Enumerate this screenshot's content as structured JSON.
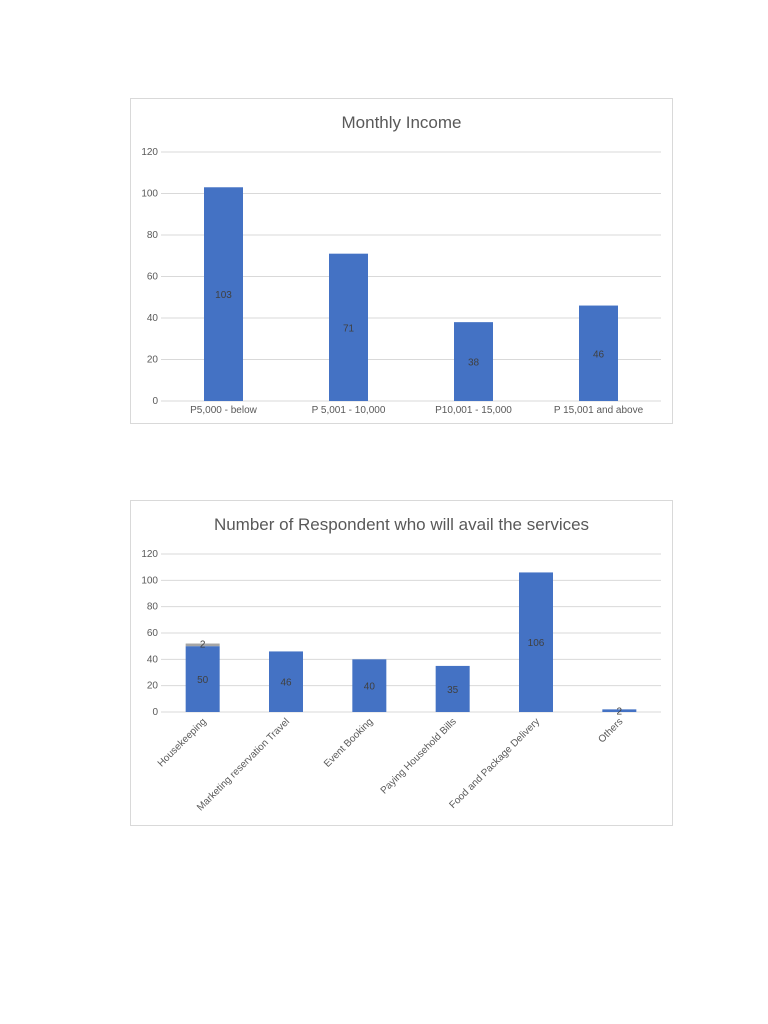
{
  "charts": [
    {
      "title": "Monthly Income"
    },
    {
      "title": "Number of Respondent who will avail the services"
    }
  ],
  "colors": {
    "bar": "#4472c4",
    "stack_top": "#a5a5a5",
    "grid": "#d9d9d9",
    "text": "#595959",
    "label": "#404040"
  },
  "chart_data": [
    {
      "type": "bar",
      "title": "Monthly Income",
      "categories": [
        "P5,000 - below",
        "P 5,001 - 10,000",
        "P10,001 - 15,000",
        "P 15,001 and above"
      ],
      "values": [
        103,
        71,
        38,
        46
      ],
      "data_labels": [
        "103",
        "71",
        "38",
        "46"
      ],
      "ylim": [
        0,
        120
      ],
      "yticks": [
        "0",
        "20",
        "40",
        "60",
        "80",
        "100",
        "120"
      ],
      "grid": true,
      "legend": "none"
    },
    {
      "type": "bar",
      "stacked": true,
      "title": "Number of Respondent who will avail the services",
      "categories": [
        "Housekeeping",
        "Marketing reservation Travel",
        "Event Booking",
        "Paying Household Bills",
        "Food and Package Delivery",
        "Others"
      ],
      "series": [
        {
          "values": [
            50,
            46,
            40,
            35,
            106,
            2
          ],
          "labels": [
            "50",
            "46",
            "40",
            "35",
            "106",
            "2"
          ]
        },
        {
          "values": [
            2,
            0,
            0,
            0,
            0,
            0
          ],
          "labels": [
            "2",
            "",
            "",
            "",
            "",
            ""
          ]
        }
      ],
      "ylim": [
        0,
        120
      ],
      "yticks": [
        "0",
        "20",
        "40",
        "60",
        "80",
        "100",
        "120"
      ],
      "grid": true,
      "legend": "none"
    }
  ]
}
